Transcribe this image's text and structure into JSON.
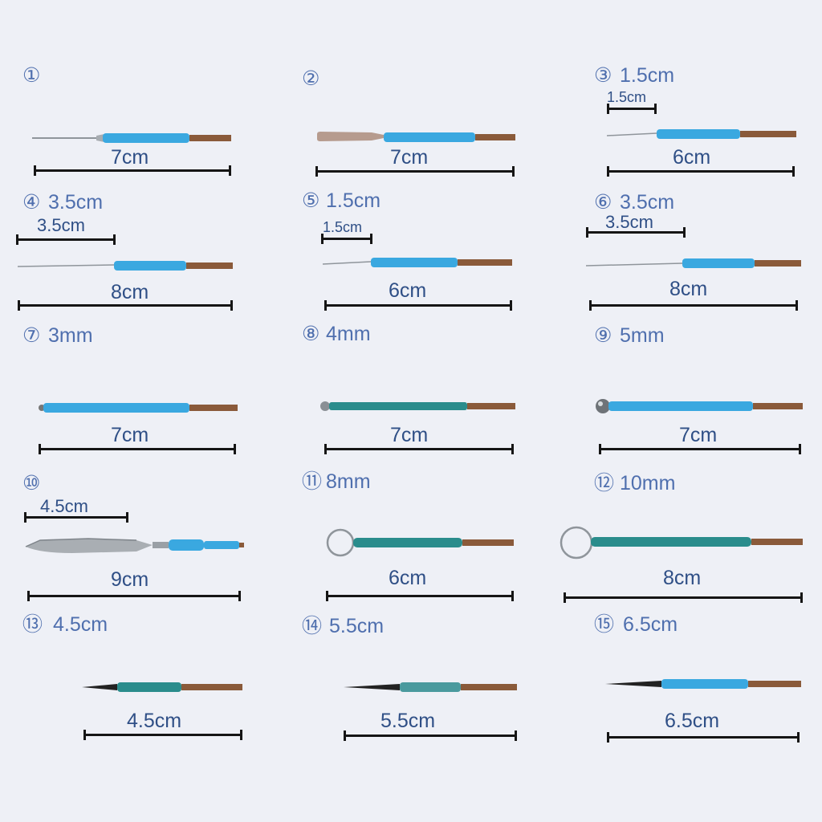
{
  "items": [
    {
      "num": "①",
      "spec": "",
      "length": "7cm",
      "sub": ""
    },
    {
      "num": "②",
      "spec": "",
      "length": "7cm",
      "sub": ""
    },
    {
      "num": "③",
      "spec": "1.5cm",
      "length": "6cm",
      "sub": "1.5cm"
    },
    {
      "num": "④",
      "spec": "3.5cm",
      "length": "8cm",
      "sub": "3.5cm"
    },
    {
      "num": "⑤",
      "spec": "1.5cm",
      "length": "6cm",
      "sub": "1.5cm"
    },
    {
      "num": "⑥",
      "spec": "3.5cm",
      "length": "8cm",
      "sub": "3.5cm"
    },
    {
      "num": "⑦",
      "spec": "3mm",
      "length": "7cm",
      "sub": ""
    },
    {
      "num": "⑧",
      "spec": "4mm",
      "length": "7cm",
      "sub": ""
    },
    {
      "num": "⑨",
      "spec": "5mm",
      "length": "7cm",
      "sub": ""
    },
    {
      "num": "⑩",
      "spec": "",
      "length": "9cm",
      "sub": "4.5cm"
    },
    {
      "num": "⑪",
      "spec": "8mm",
      "length": "6cm",
      "sub": ""
    },
    {
      "num": "⑫",
      "spec": "10mm",
      "length": "8cm",
      "sub": ""
    },
    {
      "num": "⑬",
      "spec": "4.5cm",
      "length": "4.5cm",
      "sub": ""
    },
    {
      "num": "⑭",
      "spec": "5.5cm",
      "length": "5.5cm",
      "sub": ""
    },
    {
      "num": "⑮",
      "spec": "6.5cm",
      "length": "6.5cm",
      "sub": ""
    }
  ],
  "colors": {
    "blue_handle": "#3aa8e0",
    "teal_handle": "#2a8c8c",
    "copper": "#8a5a3a",
    "steel": "#9aa0a6",
    "label": "#2f4f86"
  },
  "icons": [
    "needle-electrode",
    "blade-electrode",
    "ball-electrode",
    "scalpel-electrode",
    "loop-electrode",
    "fine-tip-electrode"
  ]
}
